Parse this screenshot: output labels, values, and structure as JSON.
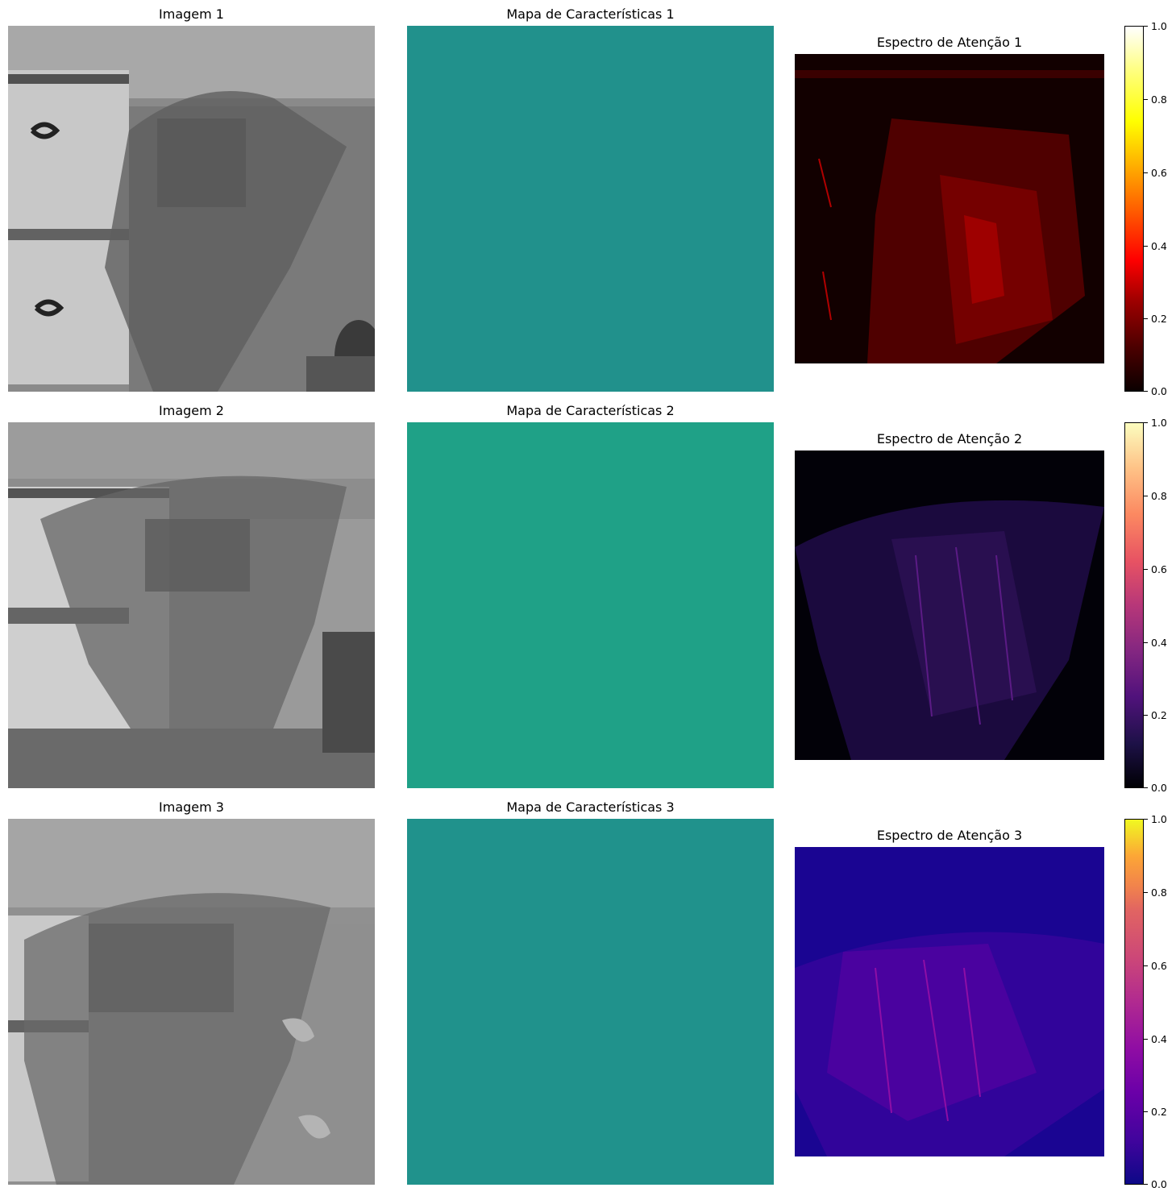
{
  "rows": [
    {
      "image_title": "Imagem 1",
      "feature_title": "Mapa de Características 1",
      "attention_title": "Espectro de Atenção 1",
      "colormap": "hot",
      "colorbar_ticks": [
        "0.0",
        "0.2",
        "0.4",
        "0.6",
        "0.8",
        "1.0"
      ],
      "feature_color": "#21918c"
    },
    {
      "image_title": "Imagem 2",
      "feature_title": "Mapa de Características 2",
      "attention_title": "Espectro de Atenção 2",
      "colormap": "magma",
      "colorbar_ticks": [
        "0.0",
        "0.2",
        "0.4",
        "0.6",
        "0.8",
        "1.0"
      ],
      "feature_color": "#1fa187"
    },
    {
      "image_title": "Imagem 3",
      "feature_title": "Mapa de Características 3",
      "attention_title": "Espectro de Atenção 3",
      "colormap": "plasma",
      "colorbar_ticks": [
        "0.0",
        "0.2",
        "0.4",
        "0.6",
        "0.8",
        "1.0"
      ],
      "feature_color": "#20928c"
    }
  ]
}
